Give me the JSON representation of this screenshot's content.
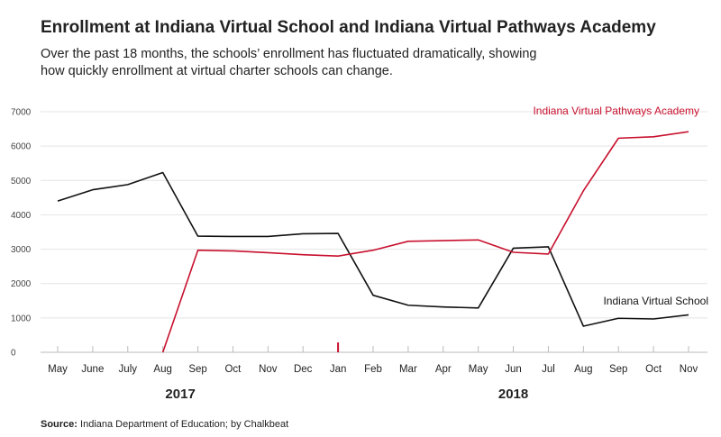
{
  "colors": {
    "red": "#c8102e",
    "black": "#111111",
    "grid": "#e4e4e4",
    "axis_text": "#444444"
  },
  "source": {
    "label": "Source:",
    "text": "Indiana Department of Education; by Chalkbeat"
  },
  "chart_data": {
    "type": "line",
    "title": "Enrollment at Indiana Virtual School and Indiana Virtual Pathways Academy",
    "subtitle": "Over the past 18 months, the schools’ enrollment has fluctuated dramatically, showing how quickly enrollment at virtual charter schools can change.",
    "categories": [
      "May",
      "June",
      "July",
      "Aug",
      "Sep",
      "Oct",
      "Nov",
      "Dec",
      "Jan",
      "Feb",
      "Mar",
      "Apr",
      "May",
      "Jun",
      "Jul",
      "Aug",
      "Sep",
      "Oct",
      "Nov"
    ],
    "years": [
      {
        "label": "2017",
        "center_index": 3.5
      },
      {
        "label": "2018",
        "center_index": 13
      }
    ],
    "year_divider_index": 8,
    "ylim": [
      0,
      7000
    ],
    "yticks": [
      0,
      1000,
      2000,
      3000,
      4000,
      5000,
      6000,
      7000
    ],
    "xlabel": "",
    "ylabel": "",
    "grid": true,
    "series": [
      {
        "name": "Indiana Virtual School",
        "color_key": "black",
        "values": [
          4400,
          4730,
          4880,
          5230,
          3380,
          3370,
          3370,
          3450,
          3460,
          1660,
          1370,
          1320,
          1290,
          3030,
          3070,
          760,
          990,
          970,
          1090
        ]
      },
      {
        "name": "Indiana Virtual Pathways Academy",
        "color_key": "red",
        "values": [
          null,
          null,
          null,
          0,
          2970,
          2950,
          2900,
          2840,
          2800,
          2970,
          3230,
          3250,
          3270,
          2910,
          2860,
          4700,
          6230,
          6270,
          6420
        ]
      }
    ],
    "annotations": [
      {
        "text": "Indiana Virtual Pathways Academy",
        "series": 1
      },
      {
        "text": "Indiana Virtual School",
        "series": 0
      }
    ]
  }
}
